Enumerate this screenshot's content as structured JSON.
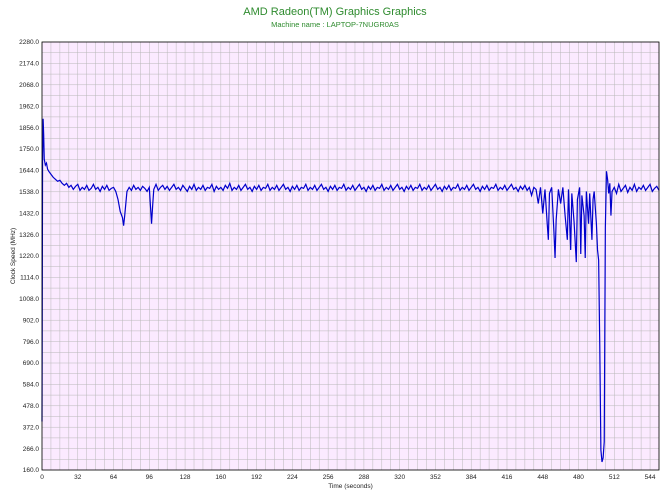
{
  "chart_data": {
    "type": "line",
    "title": "AMD Radeon(TM) Graphics Graphics",
    "subtitle": "Machine name : LAPTOP-7NUGR0AS",
    "xlabel": "Time (seconds)",
    "ylabel": "Clock Speed (MHz)",
    "xlim": [
      0,
      552
    ],
    "ylim": [
      160,
      2280
    ],
    "x_ticks": [
      0,
      32,
      64,
      96,
      128,
      160,
      192,
      224,
      256,
      288,
      320,
      352,
      384,
      416,
      448,
      480,
      512,
      544
    ],
    "y_ticks": [
      "160.0",
      "266.0",
      "372.0",
      "478.0",
      "584.0",
      "690.0",
      "796.0",
      "902.0",
      "1008.0",
      "1114.0",
      "1220.0",
      "1326.0",
      "1432.0",
      "1538.0",
      "1644.0",
      "1750.0",
      "1856.0",
      "1962.0",
      "2068.0",
      "2174.0",
      "2280.0"
    ],
    "grid": true,
    "series": [
      {
        "values": [
          [
            0,
            400
          ],
          [
            0.5,
            1700
          ],
          [
            1,
            1900
          ],
          [
            1.5,
            1820
          ],
          [
            2,
            1700
          ],
          [
            3,
            1670
          ],
          [
            4,
            1680
          ],
          [
            5,
            1650
          ],
          [
            6,
            1640
          ],
          [
            8,
            1625
          ],
          [
            10,
            1610
          ],
          [
            12,
            1600
          ],
          [
            14,
            1590
          ],
          [
            16,
            1595
          ],
          [
            18,
            1580
          ],
          [
            20,
            1570
          ],
          [
            22,
            1580
          ],
          [
            24,
            1560
          ],
          [
            26,
            1570
          ],
          [
            28,
            1550
          ],
          [
            30,
            1565
          ],
          [
            32,
            1575
          ],
          [
            34,
            1545
          ],
          [
            36,
            1560
          ],
          [
            38,
            1550
          ],
          [
            40,
            1570
          ],
          [
            42,
            1545
          ],
          [
            44,
            1555
          ],
          [
            46,
            1575
          ],
          [
            48,
            1550
          ],
          [
            50,
            1560
          ],
          [
            52,
            1540
          ],
          [
            54,
            1565
          ],
          [
            56,
            1550
          ],
          [
            58,
            1570
          ],
          [
            60,
            1545
          ],
          [
            62,
            1555
          ],
          [
            64,
            1560
          ],
          [
            66,
            1540
          ],
          [
            68,
            1500
          ],
          [
            70,
            1440
          ],
          [
            72,
            1410
          ],
          [
            73,
            1370
          ],
          [
            74,
            1420
          ],
          [
            75,
            1480
          ],
          [
            76,
            1540
          ],
          [
            78,
            1560
          ],
          [
            80,
            1545
          ],
          [
            82,
            1570
          ],
          [
            84,
            1550
          ],
          [
            86,
            1560
          ],
          [
            88,
            1545
          ],
          [
            90,
            1565
          ],
          [
            92,
            1555
          ],
          [
            94,
            1540
          ],
          [
            96,
            1560
          ],
          [
            97,
            1470
          ],
          [
            98,
            1380
          ],
          [
            99,
            1470
          ],
          [
            100,
            1550
          ],
          [
            102,
            1575
          ],
          [
            104,
            1545
          ],
          [
            106,
            1560
          ],
          [
            108,
            1570
          ],
          [
            110,
            1550
          ],
          [
            112,
            1565
          ],
          [
            114,
            1545
          ],
          [
            116,
            1560
          ],
          [
            118,
            1575
          ],
          [
            120,
            1550
          ],
          [
            122,
            1560
          ],
          [
            124,
            1545
          ],
          [
            126,
            1570
          ],
          [
            128,
            1555
          ],
          [
            130,
            1540
          ],
          [
            132,
            1565
          ],
          [
            134,
            1550
          ],
          [
            136,
            1575
          ],
          [
            138,
            1545
          ],
          [
            140,
            1560
          ],
          [
            142,
            1550
          ],
          [
            144,
            1570
          ],
          [
            146,
            1545
          ],
          [
            148,
            1560
          ],
          [
            150,
            1555
          ],
          [
            152,
            1575
          ],
          [
            154,
            1540
          ],
          [
            156,
            1565
          ],
          [
            158,
            1550
          ],
          [
            160,
            1560
          ],
          [
            162,
            1545
          ],
          [
            164,
            1570
          ],
          [
            166,
            1555
          ],
          [
            168,
            1580
          ],
          [
            170,
            1545
          ],
          [
            172,
            1560
          ],
          [
            174,
            1550
          ],
          [
            176,
            1570
          ],
          [
            178,
            1545
          ],
          [
            180,
            1560
          ],
          [
            182,
            1575
          ],
          [
            184,
            1550
          ],
          [
            186,
            1560
          ],
          [
            188,
            1540
          ],
          [
            190,
            1565
          ],
          [
            192,
            1550
          ],
          [
            194,
            1570
          ],
          [
            196,
            1545
          ],
          [
            198,
            1560
          ],
          [
            200,
            1555
          ],
          [
            202,
            1575
          ],
          [
            204,
            1545
          ],
          [
            206,
            1560
          ],
          [
            208,
            1550
          ],
          [
            210,
            1570
          ],
          [
            212,
            1545
          ],
          [
            214,
            1560
          ],
          [
            216,
            1575
          ],
          [
            218,
            1550
          ],
          [
            220,
            1560
          ],
          [
            222,
            1540
          ],
          [
            224,
            1565
          ],
          [
            226,
            1550
          ],
          [
            228,
            1570
          ],
          [
            230,
            1545
          ],
          [
            232,
            1560
          ],
          [
            234,
            1555
          ],
          [
            236,
            1575
          ],
          [
            238,
            1545
          ],
          [
            240,
            1560
          ],
          [
            242,
            1550
          ],
          [
            244,
            1570
          ],
          [
            246,
            1545
          ],
          [
            248,
            1560
          ],
          [
            250,
            1575
          ],
          [
            252,
            1550
          ],
          [
            254,
            1560
          ],
          [
            256,
            1540
          ],
          [
            258,
            1565
          ],
          [
            260,
            1550
          ],
          [
            262,
            1570
          ],
          [
            264,
            1545
          ],
          [
            266,
            1560
          ],
          [
            268,
            1555
          ],
          [
            270,
            1575
          ],
          [
            272,
            1545
          ],
          [
            274,
            1560
          ],
          [
            276,
            1550
          ],
          [
            278,
            1570
          ],
          [
            280,
            1545
          ],
          [
            282,
            1560
          ],
          [
            284,
            1575
          ],
          [
            286,
            1550
          ],
          [
            288,
            1560
          ],
          [
            290,
            1540
          ],
          [
            292,
            1565
          ],
          [
            294,
            1550
          ],
          [
            296,
            1570
          ],
          [
            298,
            1545
          ],
          [
            300,
            1560
          ],
          [
            302,
            1555
          ],
          [
            304,
            1575
          ],
          [
            306,
            1545
          ],
          [
            308,
            1560
          ],
          [
            310,
            1550
          ],
          [
            312,
            1570
          ],
          [
            314,
            1545
          ],
          [
            316,
            1560
          ],
          [
            318,
            1575
          ],
          [
            320,
            1550
          ],
          [
            322,
            1560
          ],
          [
            324,
            1540
          ],
          [
            326,
            1565
          ],
          [
            328,
            1550
          ],
          [
            330,
            1570
          ],
          [
            332,
            1545
          ],
          [
            334,
            1560
          ],
          [
            336,
            1555
          ],
          [
            338,
            1575
          ],
          [
            340,
            1545
          ],
          [
            342,
            1560
          ],
          [
            344,
            1550
          ],
          [
            346,
            1570
          ],
          [
            348,
            1545
          ],
          [
            350,
            1560
          ],
          [
            352,
            1575
          ],
          [
            354,
            1550
          ],
          [
            356,
            1560
          ],
          [
            358,
            1540
          ],
          [
            360,
            1565
          ],
          [
            362,
            1550
          ],
          [
            364,
            1570
          ],
          [
            366,
            1545
          ],
          [
            368,
            1560
          ],
          [
            370,
            1555
          ],
          [
            372,
            1575
          ],
          [
            374,
            1545
          ],
          [
            376,
            1560
          ],
          [
            378,
            1550
          ],
          [
            380,
            1570
          ],
          [
            382,
            1545
          ],
          [
            384,
            1560
          ],
          [
            386,
            1575
          ],
          [
            388,
            1550
          ],
          [
            390,
            1560
          ],
          [
            392,
            1540
          ],
          [
            394,
            1565
          ],
          [
            396,
            1550
          ],
          [
            398,
            1570
          ],
          [
            400,
            1545
          ],
          [
            402,
            1560
          ],
          [
            404,
            1555
          ],
          [
            406,
            1575
          ],
          [
            408,
            1545
          ],
          [
            410,
            1560
          ],
          [
            412,
            1550
          ],
          [
            414,
            1570
          ],
          [
            416,
            1545
          ],
          [
            418,
            1560
          ],
          [
            420,
            1575
          ],
          [
            422,
            1550
          ],
          [
            424,
            1560
          ],
          [
            426,
            1540
          ],
          [
            428,
            1565
          ],
          [
            430,
            1550
          ],
          [
            432,
            1570
          ],
          [
            434,
            1545
          ],
          [
            436,
            1560
          ],
          [
            438,
            1520
          ],
          [
            440,
            1560
          ],
          [
            442,
            1550
          ],
          [
            444,
            1480
          ],
          [
            446,
            1560
          ],
          [
            448,
            1430
          ],
          [
            450,
            1550
          ],
          [
            452,
            1380
          ],
          [
            453,
            1300
          ],
          [
            454,
            1530
          ],
          [
            456,
            1560
          ],
          [
            458,
            1340
          ],
          [
            459,
            1210
          ],
          [
            460,
            1400
          ],
          [
            462,
            1550
          ],
          [
            464,
            1480
          ],
          [
            466,
            1560
          ],
          [
            468,
            1420
          ],
          [
            470,
            1300
          ],
          [
            471,
            1550
          ],
          [
            473,
            1250
          ],
          [
            474,
            1530
          ],
          [
            476,
            1390
          ],
          [
            478,
            1190
          ],
          [
            479,
            1500
          ],
          [
            481,
            1560
          ],
          [
            482,
            1230
          ],
          [
            483,
            1520
          ],
          [
            485,
            1420
          ],
          [
            486,
            1210
          ],
          [
            487,
            1540
          ],
          [
            489,
            1380
          ],
          [
            490,
            1530
          ],
          [
            492,
            1300
          ],
          [
            493,
            1500
          ],
          [
            494,
            1540
          ],
          [
            496,
            1380
          ],
          [
            497,
            1250
          ],
          [
            498,
            1200
          ],
          [
            499,
            780
          ],
          [
            500,
            260
          ],
          [
            501,
            200
          ],
          [
            502,
            220
          ],
          [
            503,
            300
          ],
          [
            504,
            1360
          ],
          [
            505,
            1640
          ],
          [
            506,
            1600
          ],
          [
            507,
            1530
          ],
          [
            508,
            1580
          ],
          [
            509,
            1420
          ],
          [
            510,
            1540
          ],
          [
            512,
            1560
          ],
          [
            514,
            1530
          ],
          [
            516,
            1575
          ],
          [
            518,
            1540
          ],
          [
            520,
            1555
          ],
          [
            522,
            1570
          ],
          [
            524,
            1535
          ],
          [
            526,
            1560
          ],
          [
            528,
            1545
          ],
          [
            530,
            1575
          ],
          [
            532,
            1540
          ],
          [
            534,
            1560
          ],
          [
            536,
            1550
          ],
          [
            538,
            1570
          ],
          [
            540,
            1545
          ],
          [
            542,
            1560
          ],
          [
            544,
            1575
          ],
          [
            546,
            1540
          ],
          [
            548,
            1555
          ],
          [
            550,
            1565
          ],
          [
            552,
            1545
          ]
        ],
        "color": "#0000cc"
      }
    ],
    "colors": {
      "plot_background": "#fbeaff",
      "grid": "#b8b8b8",
      "title": "#2e8b2e",
      "line": "#0000cc"
    }
  }
}
